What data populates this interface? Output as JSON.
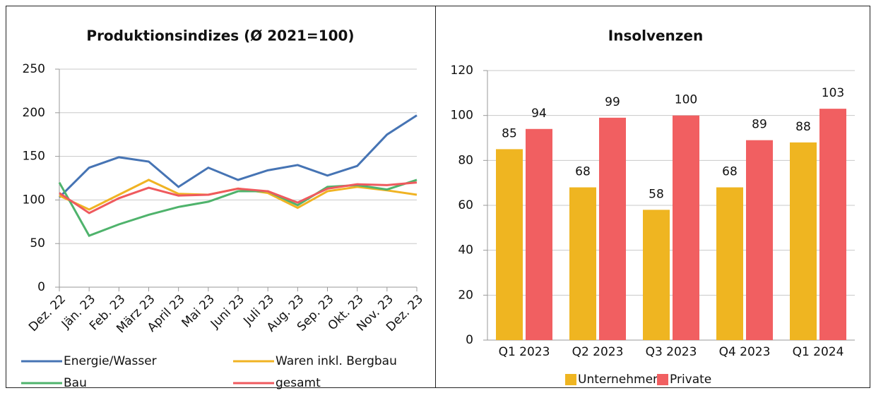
{
  "chart_data": [
    {
      "type": "line",
      "title": "Produktionsindizes (Ø 2021=100)",
      "categories": [
        "Dez. 22",
        "Jän. 23",
        "Feb. 23",
        "März 23",
        "April 23",
        "Mai 23",
        "Juni 23",
        "Juli 23",
        "Aug. 23",
        "Sep. 23",
        "Okt. 23",
        "Nov. 23",
        "Dez. 23"
      ],
      "series": [
        {
          "name": "Energie/Wasser",
          "color": "#4674b4",
          "values": [
            103,
            137,
            149,
            144,
            115,
            137,
            123,
            134,
            140,
            128,
            139,
            175,
            197
          ]
        },
        {
          "name": "Waren inkl. Bergbau",
          "color": "#f0b323",
          "values": [
            105,
            89,
            106,
            123,
            107,
            106,
            113,
            108,
            91,
            110,
            115,
            111,
            106
          ]
        },
        {
          "name": "Bau",
          "color": "#4fb36c",
          "values": [
            120,
            59,
            72,
            83,
            92,
            98,
            110,
            110,
            94,
            115,
            117,
            112,
            123
          ]
        },
        {
          "name": "gesamt",
          "color": "#ef5a5e",
          "values": [
            108,
            85,
            102,
            114,
            105,
            106,
            113,
            110,
            97,
            113,
            118,
            117,
            120
          ]
        }
      ],
      "ylim": [
        0,
        250
      ],
      "yticks": [
        0,
        50,
        100,
        150,
        200,
        250
      ],
      "grid": true
    },
    {
      "type": "bar",
      "title": "Insolvenzen",
      "categories": [
        "Q1 2023",
        "Q2 2023",
        "Q3 2023",
        "Q4 2023",
        "Q1 2024"
      ],
      "series": [
        {
          "name": "Unternehmen",
          "color": "#efb521",
          "values": [
            85,
            68,
            58,
            68,
            88
          ]
        },
        {
          "name": "Private",
          "color": "#f15f61",
          "values": [
            94,
            99,
            100,
            89,
            103
          ]
        }
      ],
      "ylim": [
        0,
        120
      ],
      "yticks": [
        0,
        20,
        40,
        60,
        80,
        100,
        120
      ],
      "grid": true
    }
  ]
}
